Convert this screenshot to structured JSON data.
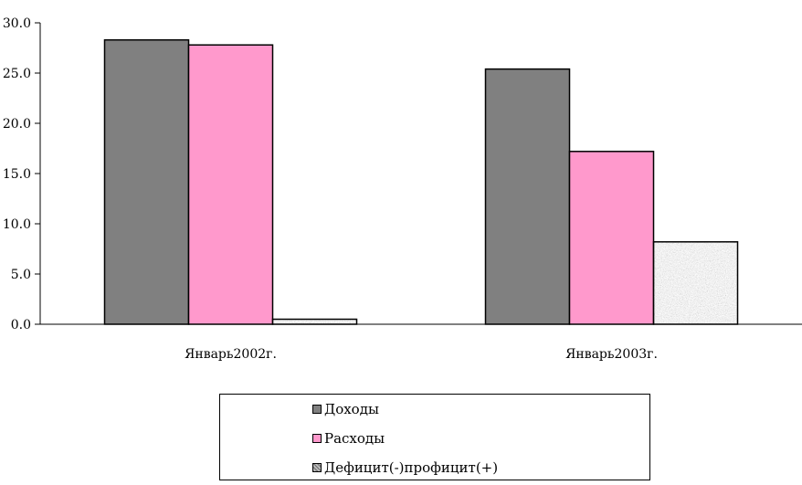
{
  "chart_data": {
    "type": "bar",
    "categories": [
      "Январь2002г.",
      "Январь2003г."
    ],
    "series": [
      {
        "name": "Доходы",
        "values": [
          28.3,
          25.4
        ],
        "color": "#808080"
      },
      {
        "name": "Расходы",
        "values": [
          27.8,
          17.2
        ],
        "color": "#ff99cc"
      },
      {
        "name": "Дефицит(-)профицит(+)",
        "values": [
          0.5,
          8.2
        ],
        "color": "#b0b0b0",
        "pattern": "granite"
      }
    ],
    "ylim": [
      0,
      30
    ],
    "yticks": [
      "0.0",
      "5.0",
      "10.0",
      "15.0",
      "20.0",
      "25.0",
      "30.0"
    ],
    "grid": false,
    "legend_position": "bottom"
  }
}
